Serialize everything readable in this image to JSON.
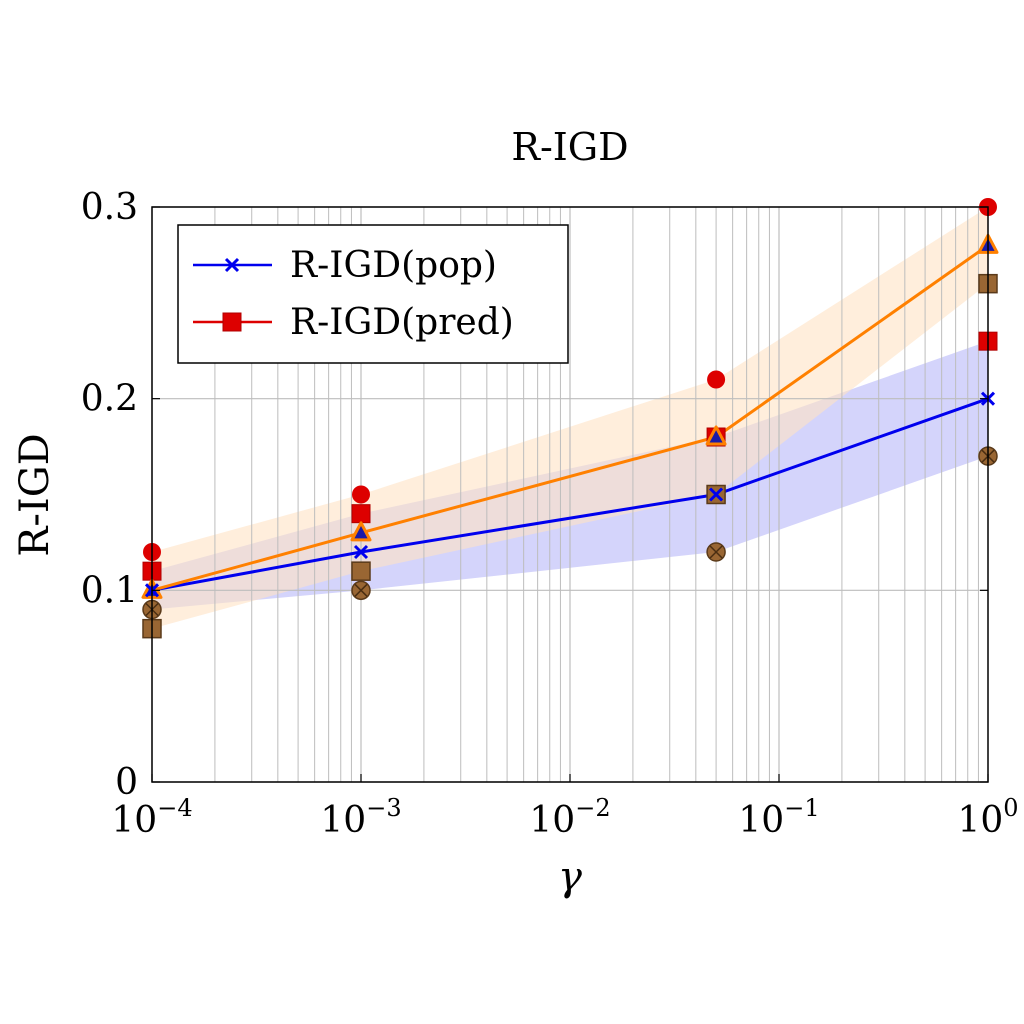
{
  "chart_data": {
    "type": "line",
    "title": "R-IGD",
    "xlabel": "γ",
    "ylabel": "R-IGD",
    "xscale": "log",
    "xlim": [
      0.0001,
      1
    ],
    "ylim": [
      0,
      0.3
    ],
    "grid": true,
    "legend_position": "top-left",
    "x_ticks": [
      {
        "base": "10",
        "exp": "−4",
        "value": 0.0001
      },
      {
        "base": "10",
        "exp": "−3",
        "value": 0.001
      },
      {
        "base": "10",
        "exp": "−2",
        "value": 0.01
      },
      {
        "base": "10",
        "exp": "−1",
        "value": 0.1
      },
      {
        "base": "10",
        "exp": "0",
        "value": 1
      }
    ],
    "y_ticks": [
      {
        "label": "0",
        "value": 0
      },
      {
        "label": "0.1",
        "value": 0.1
      },
      {
        "label": "0.2",
        "value": 0.2
      },
      {
        "label": "0.3",
        "value": 0.3
      }
    ],
    "x": [
      0.0001,
      0.001,
      0.05,
      1
    ],
    "series": [
      {
        "name": "R-IGD(pop)",
        "color": "#0000ee",
        "marker": "x",
        "in_legend": true,
        "values": [
          0.1,
          0.12,
          0.15,
          0.2
        ],
        "band_low": [
          0.09,
          0.1,
          0.12,
          0.17
        ],
        "band_high": [
          0.11,
          0.14,
          0.18,
          0.23
        ],
        "band_color": "#b8b8f8"
      },
      {
        "name": "R-IGD(pred)",
        "color": "#dd0000",
        "marker": "square",
        "in_legend": true,
        "line": false,
        "values": [
          0.11,
          0.14,
          0.18,
          0.23
        ]
      },
      {
        "name": "",
        "color": "#ff8000",
        "marker": "triangle",
        "in_legend": false,
        "values": [
          0.1,
          0.13,
          0.18,
          0.28
        ],
        "band_low": [
          0.08,
          0.11,
          0.15,
          0.26
        ],
        "band_high": [
          0.12,
          0.15,
          0.21,
          0.3
        ],
        "band_color": "#ffe2c4"
      },
      {
        "name": "",
        "color": "#dd0000",
        "marker": "circle",
        "in_legend": false,
        "line": false,
        "values": [
          0.12,
          0.15,
          0.21,
          0.3
        ]
      },
      {
        "name": "",
        "color": "#996633",
        "marker": "brown-square",
        "in_legend": false,
        "line": false,
        "values": [
          0.08,
          0.11,
          0.15,
          0.26
        ]
      },
      {
        "name": "",
        "color": "#996633",
        "marker": "otimes",
        "in_legend": false,
        "line": false,
        "values": [
          0.09,
          0.1,
          0.12,
          0.17
        ]
      }
    ]
  }
}
